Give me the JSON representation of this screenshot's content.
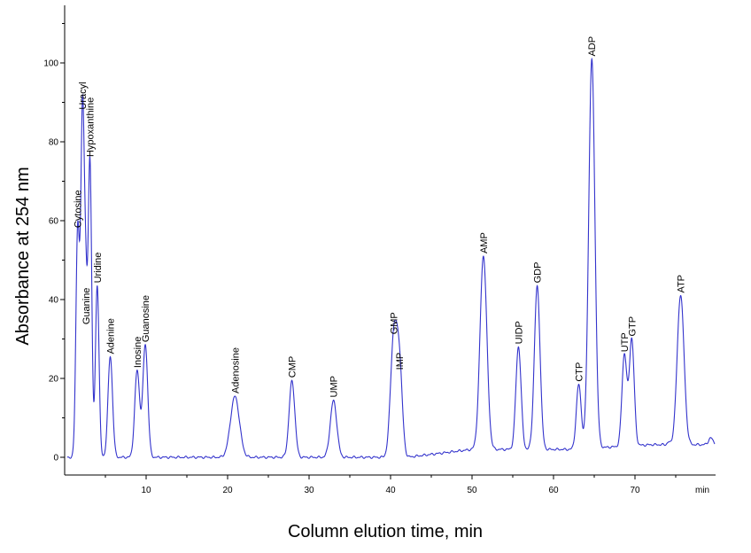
{
  "chart_data": {
    "type": "line",
    "title": "",
    "xlabel": "Column elution time, min",
    "ylabel": "Absorbance at 254 nm",
    "x_unit_label": "min",
    "xlim": [
      0,
      80
    ],
    "ylim": [
      -3,
      115
    ],
    "x_ticks": [
      10,
      20,
      30,
      40,
      50,
      60,
      70
    ],
    "y_ticks": [
      0,
      20,
      40,
      60,
      80,
      100
    ],
    "grid": false,
    "legend": "none",
    "line_color": "#3333cc",
    "peaks": [
      {
        "label": "Cytosine",
        "x": 1.6,
        "y": 57.5,
        "w": 0.22
      },
      {
        "label": "Uracyl",
        "x": 2.2,
        "y": 87.5,
        "w": 0.22
      },
      {
        "label": "Guanine",
        "x": 2.6,
        "y": 33,
        "w": 0.18
      },
      {
        "label": "Hypoxanthine",
        "x": 3.1,
        "y": 75.5,
        "w": 0.22
      },
      {
        "label": "Uridine",
        "x": 4.0,
        "y": 43.5,
        "w": 0.22
      },
      {
        "label": "Adenine",
        "x": 5.6,
        "y": 25.5,
        "w": 0.28
      },
      {
        "label": "Inosine",
        "x": 8.9,
        "y": 22,
        "w": 0.3
      },
      {
        "label": "Guanosine",
        "x": 9.9,
        "y": 28.5,
        "w": 0.3
      },
      {
        "label": "Adenosine",
        "x": 20.9,
        "y": 15.5,
        "w": 0.55
      },
      {
        "label": "CMP",
        "x": 27.9,
        "y": 19.5,
        "w": 0.35
      },
      {
        "label": "UMP",
        "x": 33.0,
        "y": 14.5,
        "w": 0.4
      },
      {
        "label": "GMP",
        "x": 40.4,
        "y": 30.5,
        "w": 0.4
      },
      {
        "label": "IMP",
        "x": 41.1,
        "y": 21.5,
        "w": 0.35
      },
      {
        "label": "AMP",
        "x": 51.4,
        "y": 51,
        "w": 0.42
      },
      {
        "label": "UIDP",
        "x": 55.7,
        "y": 28,
        "w": 0.32
      },
      {
        "label": "GDP",
        "x": 58.0,
        "y": 43.5,
        "w": 0.35
      },
      {
        "label": "CTP",
        "x": 63.1,
        "y": 18.5,
        "w": 0.3
      },
      {
        "label": "ADP",
        "x": 64.7,
        "y": 101,
        "w": 0.38
      },
      {
        "label": "UTP",
        "x": 68.7,
        "y": 26,
        "w": 0.3
      },
      {
        "label": "GTP",
        "x": 69.6,
        "y": 30,
        "w": 0.3
      },
      {
        "label": "ATP",
        "x": 75.6,
        "y": 41,
        "w": 0.42
      }
    ]
  }
}
